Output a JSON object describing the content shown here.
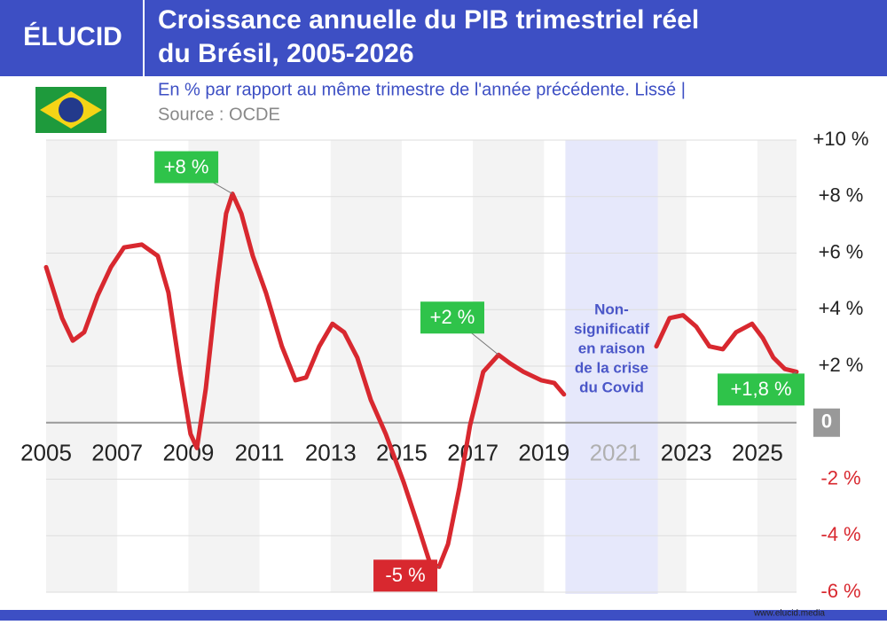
{
  "header": {
    "logo": "ÉLUCID",
    "title_lines": [
      "Croissance annuelle du PIB trimestriel réel",
      "du Brésil, 2005-2026"
    ],
    "subtitle": "En % par rapport au même trimestre de l'année précédente. Lissé  |",
    "source": "Source : OCDE",
    "footer": "www.elucid.media"
  },
  "chart_data": {
    "type": "line",
    "x": [
      2005.0,
      2005.45,
      2005.75,
      2006.07,
      2006.45,
      2006.82,
      2007.19,
      2007.69,
      2008.14,
      2008.44,
      2008.77,
      2009.06,
      2009.24,
      2009.49,
      2009.81,
      2010.06,
      2010.24,
      2010.49,
      2010.81,
      2011.18,
      2011.63,
      2012.01,
      2012.31,
      2012.68,
      2013.05,
      2013.38,
      2013.75,
      2014.13,
      2014.55,
      2015.05,
      2015.42,
      2015.8,
      2016.05,
      2016.3,
      2016.62,
      2016.92,
      2017.29,
      2017.72,
      2018.04,
      2018.42,
      2018.92,
      2019.29,
      2019.56,
      2020.91,
      2022.16,
      2022.53,
      2022.91,
      2023.28,
      2023.65,
      2024.03,
      2024.4,
      2024.85,
      2025.15,
      2025.45,
      2025.77,
      2026.1
    ],
    "values": [
      5.5,
      3.7,
      2.9,
      3.2,
      4.5,
      5.5,
      6.2,
      6.3,
      5.9,
      4.6,
      1.8,
      -0.4,
      -0.9,
      1.2,
      4.9,
      7.4,
      8.1,
      7.4,
      5.9,
      4.6,
      2.7,
      1.5,
      1.6,
      2.7,
      3.5,
      3.2,
      2.3,
      0.8,
      -0.4,
      -2.1,
      -3.5,
      -5.0,
      -5.1,
      -4.3,
      -2.3,
      -0.1,
      1.8,
      2.4,
      2.1,
      1.8,
      1.5,
      1.4,
      1.0,
      null,
      2.7,
      3.7,
      3.8,
      3.4,
      2.7,
      2.6,
      3.2,
      3.5,
      3.0,
      2.3,
      1.9,
      1.8
    ],
    "color": "#d8282f",
    "xlim": [
      2005,
      2026.1
    ],
    "xticks": [
      2005,
      2007,
      2009,
      2011,
      2013,
      2015,
      2017,
      2019,
      2021,
      2023,
      2025
    ],
    "ylim": [
      -6,
      10
    ],
    "yticks": [
      {
        "value": 10,
        "label": "+10 %"
      },
      {
        "value": 8,
        "label": "+8 %"
      },
      {
        "value": 6,
        "label": "+6 %"
      },
      {
        "value": 4,
        "label": "+4 %"
      },
      {
        "value": 2,
        "label": "+2 %"
      },
      0,
      {
        "value": -2,
        "label": "-2 %"
      },
      {
        "value": -4,
        "label": "-4 %"
      },
      {
        "value": -6,
        "label": "-6 %"
      }
    ],
    "grid": true,
    "covid_band": [
      2019.6,
      2022.2
    ],
    "covid_note": [
      "Non-",
      "significatif",
      "en raison",
      "de la crise",
      "du Covid"
    ],
    "annotations": [
      {
        "text": "+8 %",
        "x": 2010.24,
        "y": 8.1
      },
      {
        "text": "+2 %",
        "x": 2017.72,
        "y": 2.4
      },
      {
        "text": "-5 %",
        "x": 2016.05,
        "y": -5.1
      },
      {
        "text": "+1,8 %",
        "x": 2026.1,
        "y": 1.8
      }
    ]
  }
}
